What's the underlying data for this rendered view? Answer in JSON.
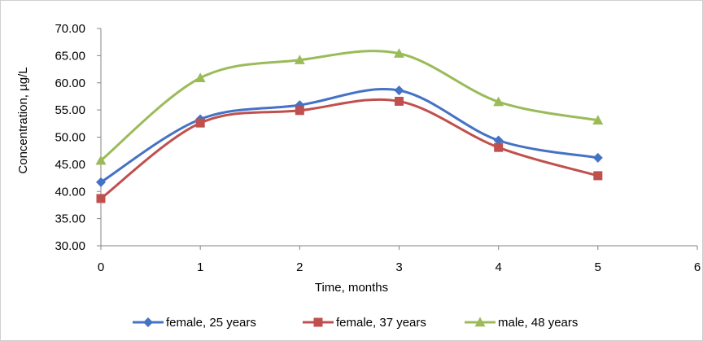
{
  "chart_data": {
    "type": "line",
    "title": "",
    "xlabel": "Time, months",
    "ylabel": "Concentration, µg/L",
    "xlim": [
      0,
      6
    ],
    "ylim": [
      30,
      70
    ],
    "x_ticks": [
      "0",
      "1",
      "2",
      "3",
      "4",
      "5",
      "6"
    ],
    "y_ticks": [
      "30.00",
      "35.00",
      "40.00",
      "45.00",
      "50.00",
      "55.00",
      "60.00",
      "65.00",
      "70.00"
    ],
    "grid": false,
    "legend_position": "bottom",
    "x": [
      0,
      1,
      2,
      3,
      4,
      5
    ],
    "series": [
      {
        "name": "female, 25 years",
        "values": [
          41.7,
          53.3,
          55.9,
          58.6,
          49.4,
          46.2
        ],
        "color": "#4472C4",
        "marker": "diamond"
      },
      {
        "name": "female, 37 years",
        "values": [
          38.7,
          52.6,
          54.9,
          56.6,
          48.1,
          42.9
        ],
        "color": "#C0504D",
        "marker": "square"
      },
      {
        "name": "male, 48 years",
        "values": [
          45.7,
          60.9,
          64.2,
          65.4,
          56.5,
          53.1
        ],
        "color": "#9BBB59",
        "marker": "triangle"
      }
    ]
  }
}
